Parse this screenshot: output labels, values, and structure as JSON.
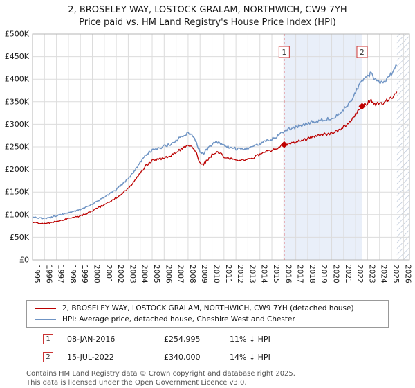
{
  "title": {
    "line1": "2, BROSELEY WAY, LOSTOCK GRALAM, NORTHWICH, CW9 7YH",
    "line2": "Price paid vs. HM Land Registry's House Price Index (HPI)"
  },
  "chart_data": {
    "type": "line",
    "x_domain": [
      1995,
      2026.5
    ],
    "y_max_k": 500,
    "x_ticks": [
      1995,
      1996,
      1997,
      1998,
      1999,
      2000,
      2001,
      2002,
      2003,
      2004,
      2005,
      2006,
      2007,
      2008,
      2009,
      2010,
      2011,
      2012,
      2013,
      2014,
      2015,
      2016,
      2017,
      2018,
      2019,
      2020,
      2021,
      2022,
      2023,
      2024,
      2025,
      2026
    ],
    "y_ticks": [
      {
        "v": 0,
        "label": "£0"
      },
      {
        "v": 50,
        "label": "£50K"
      },
      {
        "v": 100,
        "label": "£100K"
      },
      {
        "v": 150,
        "label": "£150K"
      },
      {
        "v": 200,
        "label": "£200K"
      },
      {
        "v": 250,
        "label": "£250K"
      },
      {
        "v": 300,
        "label": "£300K"
      },
      {
        "v": 350,
        "label": "£350K"
      },
      {
        "v": 400,
        "label": "£400K"
      },
      {
        "v": 450,
        "label": "£450K"
      },
      {
        "v": 500,
        "label": "£500K"
      }
    ],
    "shade_color": "#e9eff9",
    "shaded_span": [
      2016.03,
      2022.54
    ],
    "hatched_span": [
      2025.45,
      2026.5
    ],
    "grid_color": "#dcdcdc",
    "border_color": "#b5b5b5",
    "series": [
      {
        "name": "2, BROSELEY WAY, LOSTOCK GRALAM, NORTHWICH, CW9 7YH (detached house)",
        "color": "#bb0000",
        "width": 1.3,
        "points": [
          [
            1995,
            83
          ],
          [
            1995.5,
            81
          ],
          [
            1996,
            80
          ],
          [
            1996.5,
            82
          ],
          [
            1997,
            85
          ],
          [
            1997.5,
            88
          ],
          [
            1998,
            91
          ],
          [
            1998.5,
            94
          ],
          [
            1999,
            97
          ],
          [
            1999.5,
            102
          ],
          [
            2000,
            108
          ],
          [
            2000.5,
            115
          ],
          [
            2001,
            122
          ],
          [
            2001.5,
            129
          ],
          [
            2002,
            137
          ],
          [
            2002.5,
            147
          ],
          [
            2003,
            158
          ],
          [
            2003.5,
            172
          ],
          [
            2004,
            192
          ],
          [
            2004.5,
            210
          ],
          [
            2005,
            220
          ],
          [
            2005.5,
            223
          ],
          [
            2006,
            225
          ],
          [
            2006.5,
            230
          ],
          [
            2007,
            237
          ],
          [
            2007.5,
            247
          ],
          [
            2008,
            252
          ],
          [
            2008.3,
            250
          ],
          [
            2008.7,
            235
          ],
          [
            2009,
            215
          ],
          [
            2009.3,
            212
          ],
          [
            2009.6,
            220
          ],
          [
            2010,
            232
          ],
          [
            2010.4,
            238
          ],
          [
            2010.8,
            233
          ],
          [
            2011,
            228
          ],
          [
            2011.5,
            224
          ],
          [
            2012,
            222
          ],
          [
            2012.5,
            220
          ],
          [
            2013,
            224
          ],
          [
            2013.5,
            227
          ],
          [
            2014,
            233
          ],
          [
            2014.5,
            238
          ],
          [
            2015,
            242
          ],
          [
            2015.5,
            248
          ],
          [
            2016.03,
            255
          ],
          [
            2016.5,
            257
          ],
          [
            2017,
            261
          ],
          [
            2017.5,
            264
          ],
          [
            2018,
            268
          ],
          [
            2018.5,
            272
          ],
          [
            2019,
            275
          ],
          [
            2019.5,
            278
          ],
          [
            2020,
            280
          ],
          [
            2020.5,
            286
          ],
          [
            2021,
            294
          ],
          [
            2021.5,
            305
          ],
          [
            2022,
            322
          ],
          [
            2022.54,
            340
          ],
          [
            2023,
            347
          ],
          [
            2023.3,
            353
          ],
          [
            2023.6,
            344
          ],
          [
            2024,
            349
          ],
          [
            2024.3,
            345
          ],
          [
            2024.6,
            352
          ],
          [
            2025,
            358
          ],
          [
            2025.45,
            372
          ]
        ]
      },
      {
        "name": "HPI: Average price, detached house, Cheshire West and Chester",
        "color": "#6f94c4",
        "width": 1.5,
        "points": [
          [
            1995,
            95
          ],
          [
            1995.5,
            93
          ],
          [
            1996,
            92
          ],
          [
            1996.5,
            94
          ],
          [
            1997,
            98
          ],
          [
            1997.5,
            101
          ],
          [
            1998,
            104
          ],
          [
            1998.5,
            107
          ],
          [
            1999,
            111
          ],
          [
            1999.5,
            116
          ],
          [
            2000,
            123
          ],
          [
            2000.5,
            131
          ],
          [
            2001,
            139
          ],
          [
            2001.5,
            147
          ],
          [
            2002,
            156
          ],
          [
            2002.5,
            167
          ],
          [
            2003,
            180
          ],
          [
            2003.5,
            196
          ],
          [
            2004,
            216
          ],
          [
            2004.5,
            233
          ],
          [
            2005,
            243
          ],
          [
            2005.5,
            247
          ],
          [
            2006,
            251
          ],
          [
            2006.5,
            256
          ],
          [
            2007,
            263
          ],
          [
            2007.5,
            274
          ],
          [
            2008,
            281
          ],
          [
            2008.3,
            278
          ],
          [
            2008.7,
            260
          ],
          [
            2009,
            238
          ],
          [
            2009.3,
            236
          ],
          [
            2009.6,
            245
          ],
          [
            2010,
            256
          ],
          [
            2010.4,
            261
          ],
          [
            2010.8,
            256
          ],
          [
            2011,
            252
          ],
          [
            2011.5,
            248
          ],
          [
            2012,
            246
          ],
          [
            2012.5,
            244
          ],
          [
            2013,
            247
          ],
          [
            2013.5,
            251
          ],
          [
            2014,
            257
          ],
          [
            2014.5,
            263
          ],
          [
            2015,
            268
          ],
          [
            2015.5,
            274
          ],
          [
            2016.03,
            286
          ],
          [
            2016.5,
            290
          ],
          [
            2017,
            294
          ],
          [
            2017.5,
            298
          ],
          [
            2018,
            302
          ],
          [
            2018.5,
            306
          ],
          [
            2019,
            309
          ],
          [
            2019.5,
            311
          ],
          [
            2020,
            313
          ],
          [
            2020.5,
            320
          ],
          [
            2021,
            332
          ],
          [
            2021.5,
            348
          ],
          [
            2022,
            372
          ],
          [
            2022.54,
            395
          ],
          [
            2023,
            404
          ],
          [
            2023.3,
            413
          ],
          [
            2023.6,
            399
          ],
          [
            2024,
            396
          ],
          [
            2024.3,
            392
          ],
          [
            2024.6,
            401
          ],
          [
            2025,
            412
          ],
          [
            2025.45,
            430
          ]
        ]
      }
    ],
    "sales": [
      {
        "label": "1",
        "x": 2016.03,
        "y_k": 255.0,
        "line_color": "#dd4444",
        "marker_color": "#c00000"
      },
      {
        "label": "2",
        "x": 2022.54,
        "y_k": 340.0,
        "line_color": "#ee9595",
        "marker_color": "#c00000"
      }
    ]
  },
  "annotations": [
    {
      "num": "1",
      "date": "08-JAN-2016",
      "price": "£254,995",
      "delta": "11% ↓ HPI"
    },
    {
      "num": "2",
      "date": "15-JUL-2022",
      "price": "£340,000",
      "delta": "14% ↓ HPI"
    }
  ],
  "footer": {
    "line1": "Contains HM Land Registry data © Crown copyright and database right 2025.",
    "line2": "This data is licensed under the Open Government Licence v3.0."
  }
}
